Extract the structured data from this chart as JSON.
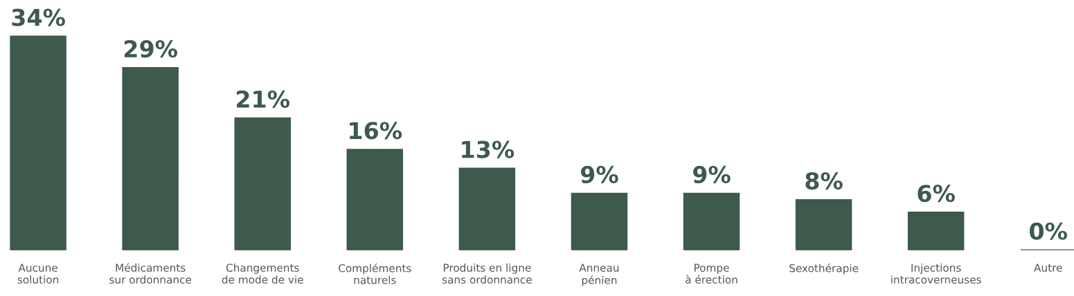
{
  "chart_data": {
    "type": "bar",
    "categories": [
      "Aucune\nsolution",
      "Médicaments\nsur ordonnance",
      "Changements\nde mode de vie",
      "Compléments\nnaturels",
      "Produits en ligne\nsans ordonnance",
      "Anneau\npénien",
      "Pompe\nà érection",
      "Sexothérapie",
      "Injections\nintracoverneuses",
      "Autre"
    ],
    "values": [
      34,
      29,
      21,
      16,
      13,
      9,
      9,
      8,
      6,
      0
    ],
    "value_labels": [
      "34%",
      "29%",
      "21%",
      "16%",
      "13%",
      "9%",
      "9%",
      "8%",
      "6%",
      "0%"
    ],
    "color": "#3d5a4c",
    "grid": false,
    "legend": false
  }
}
